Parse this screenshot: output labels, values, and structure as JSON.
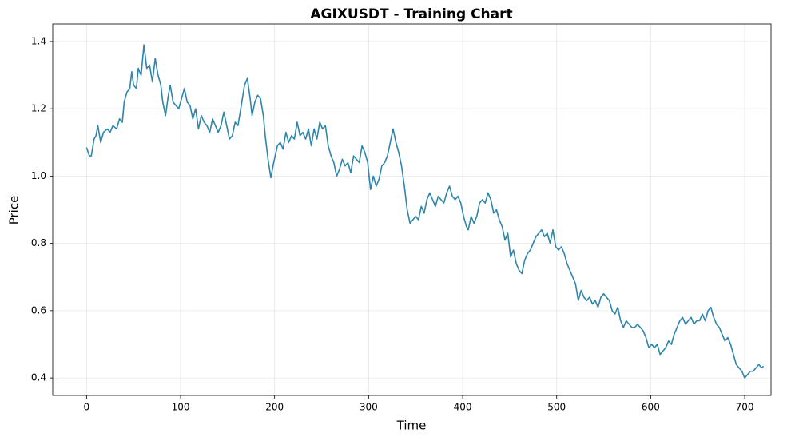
{
  "chart_data": {
    "type": "line",
    "title": "AGIXUSDT - Training Chart",
    "x_label": "Time",
    "y_label": "Price",
    "color": "#2e86ab",
    "grid": true,
    "xlim": [
      -36,
      728
    ],
    "ylim": [
      0.348,
      1.452
    ],
    "xticks": [
      0,
      100,
      200,
      300,
      400,
      500,
      600,
      700
    ],
    "yticks": [
      0.4,
      0.6,
      0.8,
      {
        "value": 1,
        "label": "1.0"
      },
      1.2,
      1.4
    ],
    "x": [
      0,
      3,
      5,
      8,
      10,
      12,
      15,
      18,
      22,
      25,
      28,
      32,
      35,
      38,
      40,
      43,
      46,
      48,
      50,
      53,
      55,
      58,
      61,
      64,
      67,
      70,
      73,
      76,
      79,
      81,
      84,
      87,
      89,
      92,
      95,
      98,
      101,
      104,
      107,
      110,
      113,
      116,
      119,
      122,
      125,
      128,
      131,
      134,
      137,
      140,
      143,
      146,
      149,
      152,
      155,
      158,
      161,
      164,
      168,
      171,
      174,
      176,
      179,
      182,
      185,
      188,
      190,
      193,
      196,
      199,
      203,
      206,
      209,
      212,
      215,
      218,
      221,
      224,
      227,
      230,
      233,
      236,
      239,
      242,
      245,
      248,
      251,
      254,
      257,
      260,
      263,
      266,
      269,
      272,
      275,
      278,
      281,
      284,
      287,
      290,
      293,
      296,
      299,
      302,
      305,
      308,
      311,
      314,
      317,
      320,
      323,
      326,
      329,
      332,
      335,
      338,
      341,
      344,
      347,
      350,
      353,
      356,
      359,
      362,
      365,
      368,
      371,
      374,
      377,
      380,
      383,
      386,
      389,
      392,
      395,
      398,
      401,
      404,
      406,
      409,
      412,
      415,
      418,
      421,
      424,
      427,
      430,
      433,
      436,
      439,
      442,
      445,
      448,
      451,
      454,
      457,
      460,
      463,
      466,
      469,
      472,
      475,
      478,
      481,
      484,
      487,
      490,
      493,
      496,
      499,
      502,
      505,
      508,
      511,
      514,
      517,
      520,
      523,
      526,
      529,
      532,
      535,
      538,
      541,
      544,
      547,
      550,
      553,
      556,
      559,
      562,
      565,
      568,
      571,
      574,
      577,
      580,
      583,
      586,
      589,
      592,
      595,
      598,
      601,
      604,
      607,
      610,
      613,
      616,
      619,
      622,
      625,
      628,
      631,
      634,
      637,
      640,
      643,
      646,
      649,
      652,
      655,
      658,
      661,
      664,
      667,
      670,
      673,
      676,
      679,
      682,
      685,
      688,
      691,
      694,
      697,
      700,
      703,
      706,
      709,
      712,
      715,
      718,
      720
    ],
    "values": [
      1.085,
      1.06,
      1.06,
      1.11,
      1.12,
      1.15,
      1.1,
      1.13,
      1.14,
      1.13,
      1.15,
      1.14,
      1.17,
      1.16,
      1.22,
      1.25,
      1.26,
      1.31,
      1.27,
      1.26,
      1.32,
      1.3,
      1.39,
      1.32,
      1.33,
      1.28,
      1.35,
      1.3,
      1.27,
      1.22,
      1.18,
      1.24,
      1.27,
      1.22,
      1.21,
      1.2,
      1.23,
      1.26,
      1.22,
      1.21,
      1.17,
      1.2,
      1.14,
      1.18,
      1.16,
      1.15,
      1.13,
      1.17,
      1.15,
      1.13,
      1.15,
      1.19,
      1.15,
      1.11,
      1.12,
      1.16,
      1.15,
      1.2,
      1.27,
      1.29,
      1.23,
      1.18,
      1.22,
      1.24,
      1.23,
      1.18,
      1.12,
      1.05,
      0.995,
      1.04,
      1.09,
      1.1,
      1.08,
      1.13,
      1.1,
      1.12,
      1.11,
      1.16,
      1.12,
      1.13,
      1.11,
      1.14,
      1.09,
      1.14,
      1.11,
      1.16,
      1.14,
      1.15,
      1.09,
      1.06,
      1.04,
      1.0,
      1.02,
      1.05,
      1.03,
      1.04,
      1.01,
      1.06,
      1.05,
      1.04,
      1.09,
      1.07,
      1.04,
      0.96,
      1.0,
      0.97,
      0.99,
      1.03,
      1.04,
      1.06,
      1.1,
      1.14,
      1.1,
      1.07,
      1.03,
      0.97,
      0.9,
      0.86,
      0.87,
      0.88,
      0.87,
      0.91,
      0.89,
      0.93,
      0.95,
      0.93,
      0.91,
      0.94,
      0.93,
      0.92,
      0.95,
      0.97,
      0.94,
      0.93,
      0.94,
      0.92,
      0.88,
      0.85,
      0.84,
      0.88,
      0.86,
      0.88,
      0.92,
      0.93,
      0.92,
      0.95,
      0.93,
      0.89,
      0.9,
      0.87,
      0.85,
      0.81,
      0.83,
      0.76,
      0.78,
      0.74,
      0.72,
      0.71,
      0.75,
      0.77,
      0.78,
      0.8,
      0.82,
      0.83,
      0.84,
      0.82,
      0.83,
      0.8,
      0.84,
      0.79,
      0.78,
      0.79,
      0.77,
      0.74,
      0.72,
      0.7,
      0.68,
      0.63,
      0.66,
      0.64,
      0.63,
      0.64,
      0.62,
      0.63,
      0.61,
      0.64,
      0.65,
      0.64,
      0.63,
      0.6,
      0.59,
      0.61,
      0.57,
      0.55,
      0.57,
      0.56,
      0.55,
      0.55,
      0.56,
      0.55,
      0.54,
      0.52,
      0.49,
      0.5,
      0.49,
      0.5,
      0.47,
      0.48,
      0.49,
      0.51,
      0.5,
      0.53,
      0.55,
      0.57,
      0.58,
      0.56,
      0.57,
      0.58,
      0.56,
      0.57,
      0.57,
      0.59,
      0.57,
      0.6,
      0.61,
      0.58,
      0.56,
      0.55,
      0.53,
      0.51,
      0.52,
      0.5,
      0.47,
      0.44,
      0.43,
      0.42,
      0.4,
      0.41,
      0.42,
      0.42,
      0.43,
      0.44,
      0.43,
      0.435
    ]
  }
}
